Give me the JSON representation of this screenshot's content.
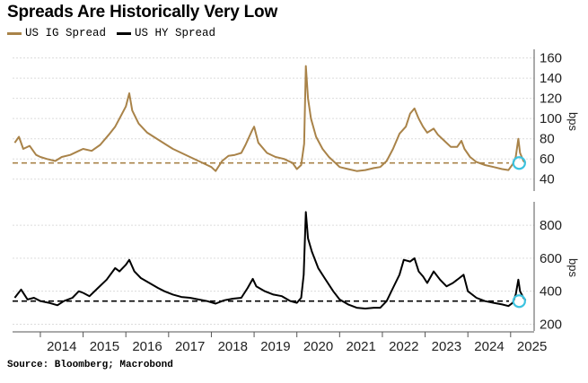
{
  "title": "Spreads Are Historically Very Low",
  "source": "Source: Bloomberg; Macrobond",
  "colors": {
    "ig": "#a98349",
    "hy": "#000000",
    "marker": "#3cc3e0",
    "grid": "#dcdcdc"
  },
  "chart_data": [
    {
      "type": "line",
      "panel": "top",
      "ylabel": "bps",
      "ylim": [
        30,
        165
      ],
      "yticks": [
        40,
        60,
        80,
        100,
        120,
        140,
        160
      ],
      "xlim": [
        2013.35,
        2025.55
      ],
      "grid": true,
      "reference_line": {
        "value": 56,
        "style": "dashed"
      },
      "highlight_point": {
        "x": 2025.2,
        "y": 56
      },
      "series": [
        {
          "name": "US IG Spread",
          "color": "#a98349",
          "points": [
            [
              2013.4,
              76
            ],
            [
              2013.5,
              82
            ],
            [
              2013.6,
              70
            ],
            [
              2013.75,
              73
            ],
            [
              2013.9,
              64
            ],
            [
              2014.0,
              62
            ],
            [
              2014.15,
              60
            ],
            [
              2014.35,
              58
            ],
            [
              2014.5,
              62
            ],
            [
              2014.7,
              64
            ],
            [
              2014.9,
              68
            ],
            [
              2015.0,
              70
            ],
            [
              2015.2,
              68
            ],
            [
              2015.4,
              74
            ],
            [
              2015.6,
              84
            ],
            [
              2015.75,
              92
            ],
            [
              2015.85,
              100
            ],
            [
              2016.0,
              112
            ],
            [
              2016.08,
              125
            ],
            [
              2016.15,
              108
            ],
            [
              2016.3,
              95
            ],
            [
              2016.5,
              86
            ],
            [
              2016.65,
              82
            ],
            [
              2016.8,
              78
            ],
            [
              2016.95,
              74
            ],
            [
              2017.1,
              70
            ],
            [
              2017.3,
              66
            ],
            [
              2017.5,
              62
            ],
            [
              2017.7,
              58
            ],
            [
              2017.9,
              54
            ],
            [
              2018.0,
              52
            ],
            [
              2018.1,
              48
            ],
            [
              2018.25,
              58
            ],
            [
              2018.4,
              63
            ],
            [
              2018.55,
              64
            ],
            [
              2018.7,
              66
            ],
            [
              2018.8,
              74
            ],
            [
              2018.95,
              88
            ],
            [
              2019.0,
              92
            ],
            [
              2019.1,
              76
            ],
            [
              2019.3,
              66
            ],
            [
              2019.5,
              62
            ],
            [
              2019.7,
              60
            ],
            [
              2019.9,
              56
            ],
            [
              2020.0,
              50
            ],
            [
              2020.1,
              54
            ],
            [
              2020.17,
              75
            ],
            [
              2020.21,
              152
            ],
            [
              2020.26,
              120
            ],
            [
              2020.33,
              100
            ],
            [
              2020.45,
              82
            ],
            [
              2020.6,
              70
            ],
            [
              2020.75,
              62
            ],
            [
              2020.9,
              56
            ],
            [
              2021.0,
              52
            ],
            [
              2021.2,
              50
            ],
            [
              2021.4,
              48
            ],
            [
              2021.6,
              49
            ],
            [
              2021.8,
              51
            ],
            [
              2021.95,
              52
            ],
            [
              2022.1,
              58
            ],
            [
              2022.25,
              70
            ],
            [
              2022.4,
              85
            ],
            [
              2022.55,
              92
            ],
            [
              2022.65,
              105
            ],
            [
              2022.75,
              110
            ],
            [
              2022.85,
              100
            ],
            [
              2022.95,
              92
            ],
            [
              2023.05,
              86
            ],
            [
              2023.2,
              90
            ],
            [
              2023.3,
              84
            ],
            [
              2023.45,
              78
            ],
            [
              2023.6,
              72
            ],
            [
              2023.75,
              72
            ],
            [
              2023.85,
              78
            ],
            [
              2023.92,
              70
            ],
            [
              2024.05,
              62
            ],
            [
              2024.2,
              57
            ],
            [
              2024.4,
              54
            ],
            [
              2024.6,
              52
            ],
            [
              2024.8,
              50
            ],
            [
              2024.95,
              49
            ],
            [
              2025.05,
              55
            ],
            [
              2025.12,
              62
            ],
            [
              2025.18,
              80
            ],
            [
              2025.22,
              66
            ],
            [
              2025.3,
              58
            ],
            [
              2025.35,
              56
            ]
          ]
        }
      ]
    },
    {
      "type": "line",
      "panel": "bottom",
      "ylabel": "bps",
      "ylim": [
        170,
        920
      ],
      "yticks": [
        200,
        400,
        600,
        800
      ],
      "xlim": [
        2013.35,
        2025.55
      ],
      "xticks": [
        "2014",
        "2015",
        "2016",
        "2017",
        "2018",
        "2019",
        "2020",
        "2021",
        "2022",
        "2023",
        "2024",
        "2025"
      ],
      "grid": true,
      "reference_line": {
        "value": 340,
        "style": "dashed"
      },
      "highlight_point": {
        "x": 2025.2,
        "y": 340
      },
      "series": [
        {
          "name": "US HY Spread",
          "color": "#000000",
          "points": [
            [
              2013.4,
              360
            ],
            [
              2013.55,
              410
            ],
            [
              2013.7,
              350
            ],
            [
              2013.85,
              360
            ],
            [
              2014.0,
              340
            ],
            [
              2014.2,
              330
            ],
            [
              2014.4,
              315
            ],
            [
              2014.55,
              340
            ],
            [
              2014.75,
              360
            ],
            [
              2014.9,
              400
            ],
            [
              2015.0,
              390
            ],
            [
              2015.15,
              370
            ],
            [
              2015.35,
              420
            ],
            [
              2015.55,
              470
            ],
            [
              2015.75,
              540
            ],
            [
              2015.85,
              520
            ],
            [
              2016.0,
              560
            ],
            [
              2016.08,
              590
            ],
            [
              2016.2,
              520
            ],
            [
              2016.35,
              480
            ],
            [
              2016.55,
              450
            ],
            [
              2016.75,
              420
            ],
            [
              2016.9,
              400
            ],
            [
              2017.1,
              380
            ],
            [
              2017.3,
              365
            ],
            [
              2017.5,
              360
            ],
            [
              2017.7,
              350
            ],
            [
              2017.9,
              340
            ],
            [
              2018.1,
              325
            ],
            [
              2018.3,
              345
            ],
            [
              2018.5,
              355
            ],
            [
              2018.7,
              360
            ],
            [
              2018.85,
              420
            ],
            [
              2018.97,
              475
            ],
            [
              2019.05,
              430
            ],
            [
              2019.25,
              400
            ],
            [
              2019.45,
              380
            ],
            [
              2019.65,
              370
            ],
            [
              2019.85,
              340
            ],
            [
              2020.0,
              330
            ],
            [
              2020.1,
              360
            ],
            [
              2020.16,
              500
            ],
            [
              2020.21,
              880
            ],
            [
              2020.26,
              720
            ],
            [
              2020.35,
              640
            ],
            [
              2020.5,
              540
            ],
            [
              2020.65,
              480
            ],
            [
              2020.85,
              400
            ],
            [
              2021.0,
              350
            ],
            [
              2021.2,
              320
            ],
            [
              2021.4,
              300
            ],
            [
              2021.6,
              295
            ],
            [
              2021.8,
              300
            ],
            [
              2021.95,
              300
            ],
            [
              2022.1,
              340
            ],
            [
              2022.25,
              420
            ],
            [
              2022.4,
              500
            ],
            [
              2022.5,
              590
            ],
            [
              2022.65,
              580
            ],
            [
              2022.75,
              600
            ],
            [
              2022.85,
              520
            ],
            [
              2022.95,
              490
            ],
            [
              2023.05,
              450
            ],
            [
              2023.2,
              520
            ],
            [
              2023.35,
              470
            ],
            [
              2023.5,
              430
            ],
            [
              2023.65,
              450
            ],
            [
              2023.8,
              480
            ],
            [
              2023.9,
              500
            ],
            [
              2024.0,
              400
            ],
            [
              2024.2,
              360
            ],
            [
              2024.4,
              340
            ],
            [
              2024.6,
              330
            ],
            [
              2024.8,
              320
            ],
            [
              2024.95,
              310
            ],
            [
              2025.05,
              330
            ],
            [
              2025.12,
              380
            ],
            [
              2025.18,
              470
            ],
            [
              2025.22,
              400
            ],
            [
              2025.3,
              360
            ],
            [
              2025.35,
              345
            ]
          ]
        }
      ]
    }
  ]
}
